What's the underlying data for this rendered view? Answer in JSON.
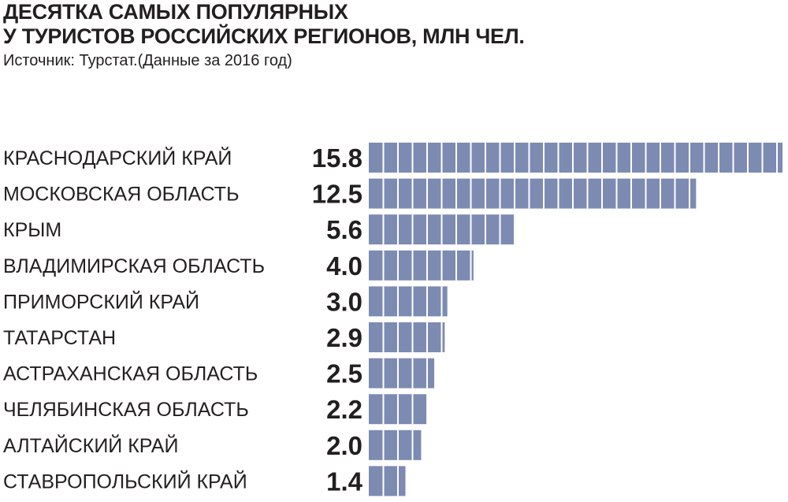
{
  "header": {
    "title_line1": "ДЕСЯТКА САМЫХ ПОПУЛЯРНЫХ",
    "title_line2": "У ТУРИСТОВ РОССИЙСКИХ РЕГИОНОВ, МЛН ЧЕЛ.",
    "source": "Источник: Турстат.(Данные за 2016 год)"
  },
  "colors": {
    "bar": "#7d8bb2",
    "segment_divider": "#ffffff",
    "text": "#231f20"
  },
  "chart_data": {
    "type": "bar",
    "orientation": "horizontal",
    "title": "ДЕСЯТКА САМЫХ ПОПУЛЯРНЫХ У ТУРИСТОВ РОССИЙСКИХ РЕГИОНОВ, МЛН ЧЕЛ.",
    "subtitle": "Источник: Турстат.(Данные за 2016 год)",
    "categories": [
      "КРАСНОДАРСКИЙ КРАЙ",
      "МОСКОВСКАЯ ОБЛАСТЬ",
      "КРЫМ",
      "ВЛАДИМИРСКАЯ ОБЛАСТЬ",
      "ПРИМОРСКИЙ КРАЙ",
      "ТАТАРСТАН",
      "АСТРАХАНСКАЯ ОБЛАСТЬ",
      "ЧЕЛЯБИНСКАЯ ОБЛАСТЬ",
      "АЛТАЙСКИЙ КРАЙ",
      "СТАВРОПОЛЬСКИЙ КРАЙ"
    ],
    "values": [
      15.8,
      12.5,
      5.6,
      4.0,
      3.0,
      2.9,
      2.5,
      2.2,
      2.0,
      1.4
    ],
    "value_labels": [
      "15.8",
      "12.5",
      "5.6",
      "4.0",
      "3.0",
      "2.9",
      "2.5",
      "2.2",
      "2.0",
      "1.4"
    ],
    "xlim": [
      0,
      15.8
    ],
    "grid": false,
    "legend": "none"
  }
}
